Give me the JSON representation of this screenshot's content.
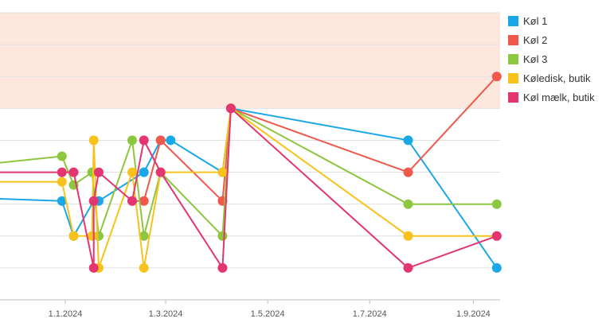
{
  "chart_data": {
    "type": "line",
    "title": "",
    "xlabel": "",
    "ylabel": "",
    "x_ticks": [
      "1.1.2024",
      "1.3.2024",
      "1.5.2024",
      "1.7.2024",
      "1.9.2024"
    ],
    "y_range": [
      0,
      9
    ],
    "highlight_band": {
      "from": 6,
      "to": 9,
      "color": "#fde7dc"
    },
    "grid": true,
    "legend_position": "right",
    "series": [
      {
        "name": "Køl 1",
        "color": "#1aa7e8",
        "points": [
          [
            "2023-11-05",
            3.2
          ],
          [
            "2023-12-30",
            3.1
          ],
          [
            "2024-01-06",
            2.0
          ],
          [
            "2024-01-18",
            3.1
          ],
          [
            "2024-01-21",
            3.1
          ],
          [
            "2024-02-17",
            4.0
          ],
          [
            "2024-02-27",
            5.0
          ],
          [
            "2024-03-04",
            5.0
          ],
          [
            "2024-04-04",
            4.0
          ],
          [
            "2024-04-09",
            6.0
          ],
          [
            "2024-07-24",
            5.0
          ],
          [
            "2024-09-15",
            1.0
          ]
        ]
      },
      {
        "name": "Køl 2",
        "color": "#f0584b",
        "points": [
          [
            "2024-02-10",
            3.1
          ],
          [
            "2024-02-17",
            3.1
          ],
          [
            "2024-02-27",
            5.0
          ],
          [
            "2024-04-04",
            3.1
          ],
          [
            "2024-04-09",
            6.0
          ],
          [
            "2024-07-24",
            4.0
          ],
          [
            "2024-09-15",
            7.0
          ]
        ]
      },
      {
        "name": "Køl 3",
        "color": "#8dc63f",
        "points": [
          [
            "2023-11-05",
            4.2
          ],
          [
            "2023-12-30",
            4.5
          ],
          [
            "2024-01-06",
            3.6
          ],
          [
            "2024-01-17",
            4.0
          ],
          [
            "2024-01-21",
            2.0
          ],
          [
            "2024-02-10",
            5.0
          ],
          [
            "2024-02-17",
            2.0
          ],
          [
            "2024-02-27",
            4.0
          ],
          [
            "2024-04-04",
            2.0
          ],
          [
            "2024-04-09",
            6.0
          ],
          [
            "2024-07-24",
            3.0
          ],
          [
            "2024-09-15",
            3.0
          ]
        ]
      },
      {
        "name": "Køledisk, butik",
        "color": "#f6c21b",
        "points": [
          [
            "2023-11-05",
            3.7
          ],
          [
            "2023-12-30",
            3.7
          ],
          [
            "2024-01-06",
            2.0
          ],
          [
            "2024-01-17",
            2.0
          ],
          [
            "2024-01-18",
            5.0
          ],
          [
            "2024-01-21",
            1.0
          ],
          [
            "2024-02-10",
            4.0
          ],
          [
            "2024-02-17",
            1.0
          ],
          [
            "2024-02-27",
            4.0
          ],
          [
            "2024-04-04",
            4.0
          ],
          [
            "2024-04-09",
            6.0
          ],
          [
            "2024-07-24",
            2.0
          ],
          [
            "2024-09-15",
            2.0
          ]
        ]
      },
      {
        "name": "Køl mælk, butik",
        "color": "#e23571",
        "points": [
          [
            "2023-11-05",
            4.0
          ],
          [
            "2023-12-30",
            4.0
          ],
          [
            "2024-01-06",
            4.0
          ],
          [
            "2024-01-18",
            1.0
          ],
          [
            "2024-01-18",
            3.1
          ],
          [
            "2024-01-21",
            4.0
          ],
          [
            "2024-02-10",
            3.1
          ],
          [
            "2024-02-17",
            5.0
          ],
          [
            "2024-02-27",
            4.0
          ],
          [
            "2024-04-04",
            1.0
          ],
          [
            "2024-04-09",
            6.0
          ],
          [
            "2024-07-24",
            1.0
          ],
          [
            "2024-09-15",
            2.0
          ]
        ]
      }
    ]
  }
}
